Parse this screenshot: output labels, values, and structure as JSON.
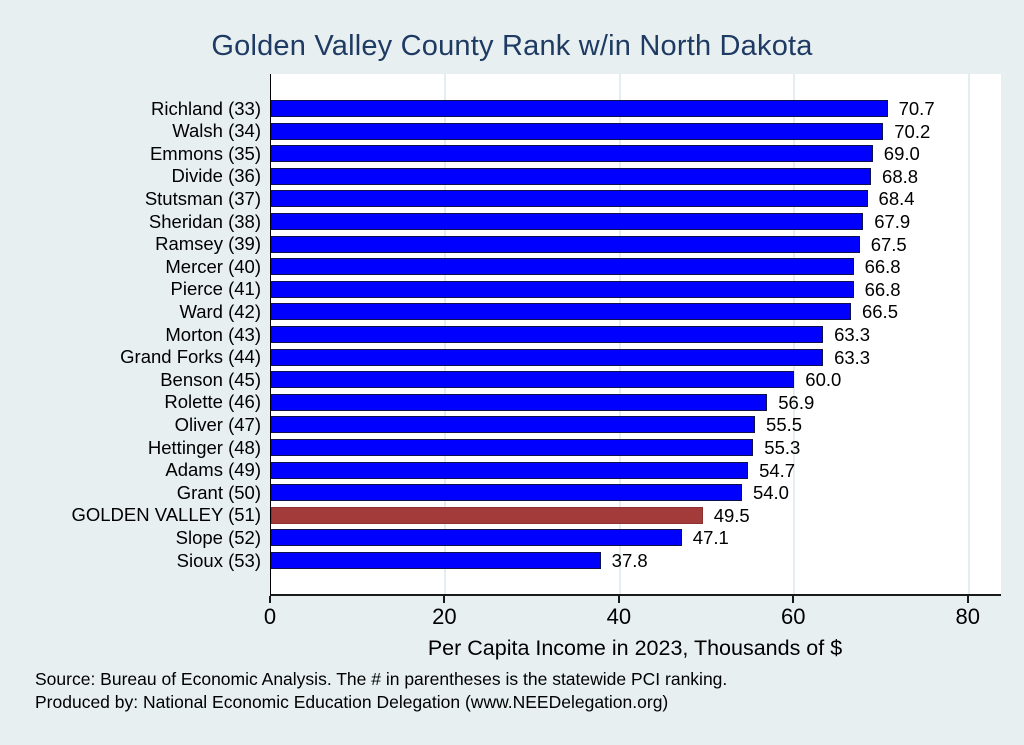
{
  "title": "Golden Valley County Rank w/in North Dakota",
  "chart_data": {
    "type": "bar",
    "orientation": "horizontal",
    "categories": [
      "Richland (33)",
      "Walsh (34)",
      "Emmons (35)",
      "Divide (36)",
      "Stutsman (37)",
      "Sheridan (38)",
      "Ramsey (39)",
      "Mercer (40)",
      "Pierce (41)",
      "Ward (42)",
      "Morton (43)",
      "Grand Forks (44)",
      "Benson (45)",
      "Rolette (46)",
      "Oliver (47)",
      "Hettinger (48)",
      "Adams (49)",
      "Grant (50)",
      "GOLDEN VALLEY (51)",
      "Slope (52)",
      "Sioux (53)"
    ],
    "values": [
      70.7,
      70.2,
      69.0,
      68.8,
      68.4,
      67.9,
      67.5,
      66.8,
      66.8,
      66.5,
      63.3,
      63.3,
      60.0,
      56.9,
      55.5,
      55.3,
      54.7,
      54.0,
      49.5,
      47.1,
      37.8
    ],
    "highlight_index": 18,
    "highlight_category": "GOLDEN VALLEY (51)",
    "xlabel": "Per Capita Income in 2023, Thousands of $",
    "xticks": [
      0,
      20,
      40,
      60,
      80
    ],
    "xlim": [
      0,
      83.7
    ],
    "grid": true,
    "legend": "none",
    "value_label_decimals": 1,
    "colors": {
      "bar": "#0000ff",
      "bar_border": "#10104a",
      "highlight": "#a33b3b",
      "highlight_border": "#8c3232",
      "gridline": "#e3eef0",
      "background": "#e7eff1",
      "plot_background": "#ffffff",
      "title": "#1f3b63",
      "axis": "#1a1a1a"
    }
  },
  "footer": {
    "line1": "Source: Bureau of Economic Analysis. The # in parentheses is the statewide PCI ranking.",
    "line2": "Produced by: National Economic Education Delegation (www.NEEDelegation.org)"
  }
}
